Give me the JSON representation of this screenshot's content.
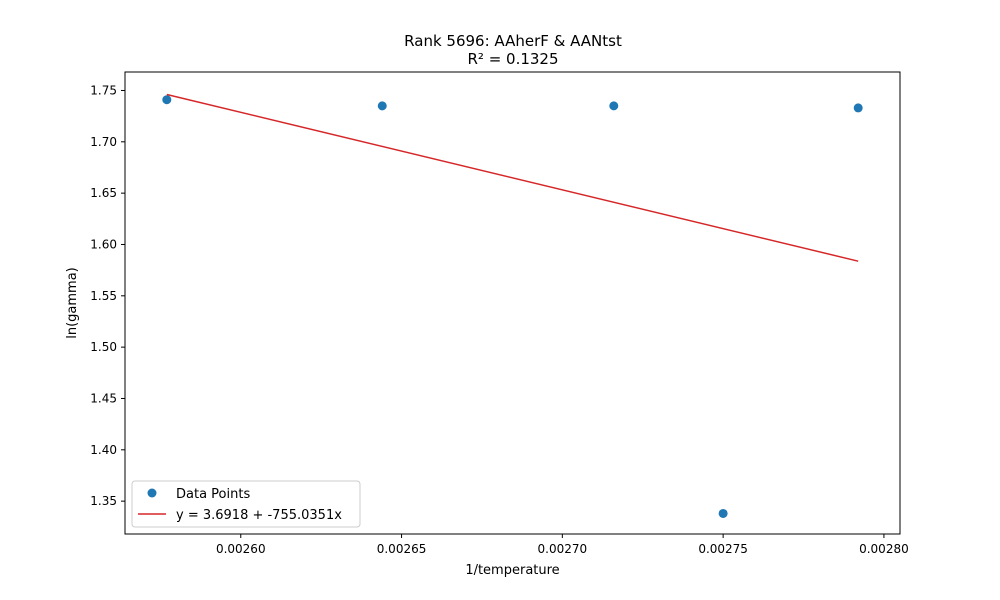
{
  "chart_data": {
    "type": "scatter",
    "title": "Rank 5696: AAherF & AANtst",
    "subtitle": "R² = 0.1325",
    "xlabel": "1/temperature",
    "ylabel": "ln(gamma)",
    "xlim": [
      0.002564,
      0.002805
    ],
    "ylim": [
      1.318,
      1.768
    ],
    "x_ticks": [
      0.0026,
      0.00265,
      0.0027,
      0.00275,
      0.0028
    ],
    "x_tick_labels": [
      "0.00260",
      "0.00265",
      "0.00270",
      "0.00275",
      "0.00280"
    ],
    "y_ticks": [
      1.35,
      1.4,
      1.45,
      1.5,
      1.55,
      1.6,
      1.65,
      1.7,
      1.75
    ],
    "y_tick_labels": [
      "1.35",
      "1.40",
      "1.45",
      "1.50",
      "1.55",
      "1.60",
      "1.65",
      "1.70",
      "1.75"
    ],
    "grid": false,
    "legend": {
      "position": "lower-left"
    },
    "series": [
      {
        "name": "Data Points",
        "kind": "scatter",
        "color": "#1f77b4",
        "x": [
          0.002577,
          0.002644,
          0.002716,
          0.00275,
          0.002792
        ],
        "y": [
          1.741,
          1.735,
          1.735,
          1.338,
          1.733
        ]
      },
      {
        "name": "y = 3.6918 + -755.0351x",
        "kind": "line",
        "color": "#d62728",
        "intercept": 3.6918,
        "slope": -755.0351,
        "x": [
          0.002577,
          0.002792
        ]
      }
    ]
  }
}
